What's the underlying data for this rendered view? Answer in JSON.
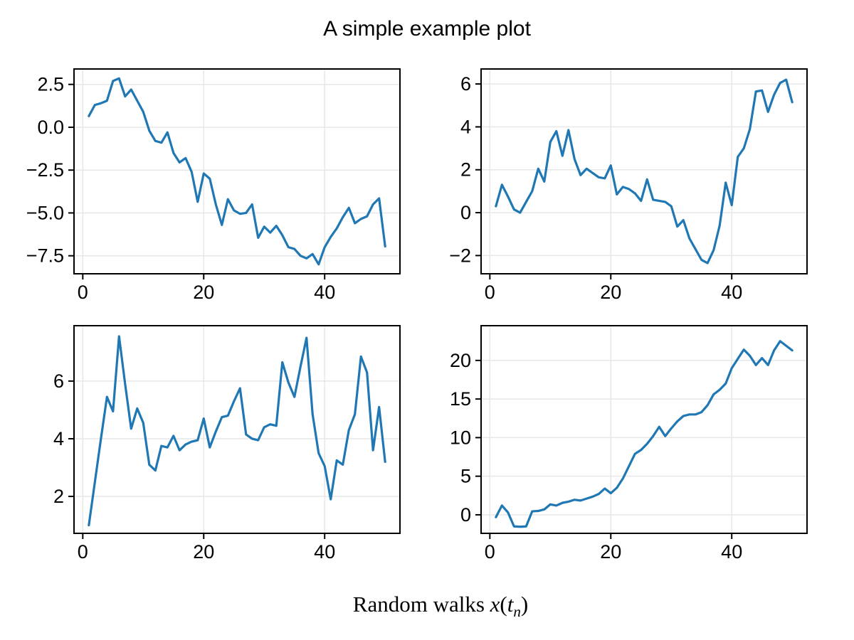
{
  "figure": {
    "title": "A simple example plot",
    "xlabel": {
      "full": "Random walks x(t_n)",
      "parts": [
        {
          "text": "Random walks ",
          "style": "upright"
        },
        {
          "text": "x",
          "style": "italic"
        },
        {
          "text": "(",
          "style": "upright"
        },
        {
          "text": "t",
          "style": "italic"
        },
        {
          "text": "n",
          "style": "subscript-italic"
        },
        {
          "text": ")",
          "style": "upright"
        }
      ]
    },
    "colors": {
      "line": "#1f77b4",
      "grid": "#e7e7e7",
      "spine": "#000000",
      "text": "#000000",
      "background": "#ffffff"
    }
  },
  "chart_data": [
    {
      "id": "top-left",
      "type": "line",
      "x_start": 1,
      "x_step": 1,
      "values": [
        0.65,
        1.3,
        1.4,
        1.55,
        2.7,
        2.85,
        1.8,
        2.2,
        1.55,
        0.9,
        -0.2,
        -0.8,
        -0.9,
        -0.3,
        -1.5,
        -2.05,
        -1.8,
        -2.6,
        -4.35,
        -2.7,
        -3.0,
        -4.5,
        -5.7,
        -4.2,
        -4.85,
        -5.05,
        -5.0,
        -4.5,
        -6.45,
        -5.8,
        -6.15,
        -5.75,
        -6.3,
        -7.0,
        -7.1,
        -7.5,
        -7.65,
        -7.4,
        -8.0,
        -7.0,
        -6.4,
        -5.9,
        -5.25,
        -4.7,
        -5.6,
        -5.35,
        -5.2,
        -4.5,
        -4.15,
        -6.95
      ],
      "xlim": [
        -1.45,
        52.45
      ],
      "ylim": [
        -8.55,
        3.4
      ],
      "xticks": [
        0,
        20,
        40
      ],
      "xtick_labels": [
        "0",
        "20",
        "40"
      ],
      "yticks": [
        2.5,
        0,
        -2.5,
        -5,
        -7.5
      ],
      "ytick_labels": [
        "2.5",
        "0.0",
        "−2.5",
        "−5.0",
        "−7.5"
      ],
      "grid": true
    },
    {
      "id": "top-right",
      "type": "line",
      "x_start": 1,
      "x_step": 1,
      "values": [
        0.3,
        1.3,
        0.75,
        0.15,
        0.0,
        0.5,
        1.0,
        2.05,
        1.45,
        3.3,
        3.8,
        2.65,
        3.85,
        2.5,
        1.75,
        2.05,
        1.85,
        1.65,
        1.6,
        2.2,
        0.85,
        1.2,
        1.1,
        0.9,
        0.55,
        1.55,
        0.6,
        0.55,
        0.5,
        0.3,
        -0.65,
        -0.35,
        -1.2,
        -1.7,
        -2.2,
        -2.35,
        -1.75,
        -0.6,
        1.4,
        0.35,
        2.6,
        3.0,
        3.9,
        5.65,
        5.7,
        4.7,
        5.5,
        6.05,
        6.2,
        5.15
      ],
      "xlim": [
        -1.45,
        52.45
      ],
      "ylim": [
        -2.85,
        6.7
      ],
      "xticks": [
        0,
        20,
        40
      ],
      "xtick_labels": [
        "0",
        "20",
        "40"
      ],
      "yticks": [
        -2,
        0,
        2,
        4,
        6
      ],
      "ytick_labels": [
        "−2",
        "0",
        "2",
        "4",
        "6"
      ],
      "grid": true
    },
    {
      "id": "bottom-left",
      "type": "line",
      "x_start": 1,
      "x_step": 1,
      "values": [
        1.0,
        2.5,
        4.0,
        5.45,
        4.95,
        7.55,
        5.9,
        4.35,
        5.05,
        4.55,
        3.1,
        2.9,
        3.75,
        3.7,
        4.1,
        3.6,
        3.8,
        3.9,
        3.95,
        4.7,
        3.7,
        4.25,
        4.75,
        4.8,
        5.3,
        5.75,
        4.15,
        4.0,
        3.95,
        4.4,
        4.5,
        4.45,
        6.65,
        5.95,
        5.45,
        6.5,
        7.5,
        4.85,
        3.5,
        3.05,
        1.9,
        3.25,
        3.1,
        4.3,
        4.85,
        6.85,
        6.3,
        3.6,
        5.1,
        3.2
      ],
      "xlim": [
        -1.45,
        52.45
      ],
      "ylim": [
        0.72,
        7.92
      ],
      "xticks": [
        0,
        20,
        40
      ],
      "xtick_labels": [
        "0",
        "20",
        "40"
      ],
      "yticks": [
        2,
        4,
        6
      ],
      "ytick_labels": [
        "2",
        "4",
        "6"
      ],
      "grid": true
    },
    {
      "id": "bottom-right",
      "type": "line",
      "x_start": 1,
      "x_step": 1,
      "values": [
        -0.3,
        1.2,
        0.3,
        -1.5,
        -1.55,
        -1.5,
        0.45,
        0.5,
        0.7,
        1.35,
        1.2,
        1.55,
        1.7,
        1.95,
        1.85,
        2.1,
        2.35,
        2.7,
        3.4,
        2.8,
        3.5,
        4.7,
        6.3,
        7.9,
        8.4,
        9.2,
        10.2,
        11.4,
        10.2,
        11.2,
        12.1,
        12.8,
        13.0,
        13.0,
        13.3,
        14.2,
        15.6,
        16.2,
        17.0,
        19.0,
        20.2,
        21.4,
        20.6,
        19.4,
        20.3,
        19.4,
        21.3,
        22.5,
        21.9,
        21.3
      ],
      "xlim": [
        -1.45,
        52.45
      ],
      "ylim": [
        -2.4,
        24.5
      ],
      "xticks": [
        0,
        20,
        40
      ],
      "xtick_labels": [
        "0",
        "20",
        "40"
      ],
      "yticks": [
        0,
        5,
        10,
        15,
        20
      ],
      "ytick_labels": [
        "0",
        "5",
        "10",
        "15",
        "20"
      ],
      "grid": true
    }
  ]
}
